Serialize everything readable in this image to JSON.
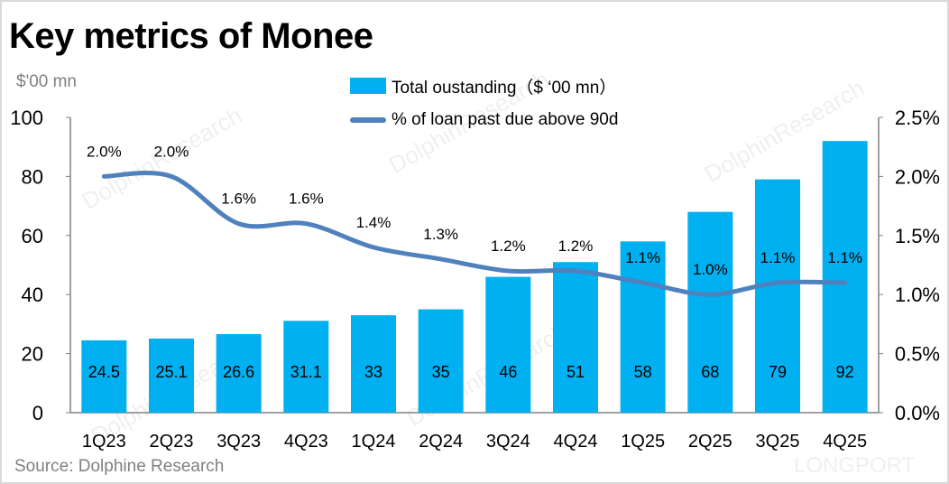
{
  "title": "Key metrics of Monee",
  "left_unit": "$'00 mn",
  "source": "Source:  Dolphine Research",
  "watermark": "DolphinResearch",
  "watermark_logo": "LONGPORT",
  "chart_data": {
    "type": "bar+line",
    "categories": [
      "1Q23",
      "2Q23",
      "3Q23",
      "4Q23",
      "1Q24",
      "2Q24",
      "3Q24",
      "4Q24",
      "1Q25",
      "2Q25",
      "3Q25",
      "4Q25"
    ],
    "series": [
      {
        "name": "Total oustanding（$  ‘00 mn）",
        "type": "bar",
        "axis": "left",
        "color": "#00b0f0",
        "values": [
          24.5,
          25.1,
          26.6,
          31.1,
          33,
          35,
          46,
          51,
          58,
          68,
          79,
          92
        ],
        "labels": [
          "24.5",
          "25.1",
          "26.6",
          "31.1",
          "33",
          "35",
          "46",
          "51",
          "58",
          "68",
          "79",
          "92"
        ]
      },
      {
        "name": "% of loan past due above 90d",
        "type": "line",
        "axis": "right",
        "color": "#4f81bd",
        "values": [
          2.0,
          2.0,
          1.6,
          1.6,
          1.4,
          1.3,
          1.2,
          1.2,
          1.1,
          1.0,
          1.1,
          1.1
        ],
        "labels": [
          "2.0%",
          "2.0%",
          "1.6%",
          "1.6%",
          "1.4%",
          "1.3%",
          "1.2%",
          "1.2%",
          "1.1%",
          "1.0%",
          "1.1%",
          "1.1%"
        ]
      }
    ],
    "left_axis": {
      "ylim": [
        0,
        100
      ],
      "ticks": [
        "0",
        "20",
        "40",
        "60",
        "80",
        "100"
      ]
    },
    "right_axis": {
      "ylim": [
        0,
        2.5
      ],
      "ticks": [
        "0.0%",
        "0.5%",
        "1.0%",
        "1.5%",
        "2.0%",
        "2.5%"
      ]
    },
    "grid": false,
    "legend": "top-center"
  }
}
